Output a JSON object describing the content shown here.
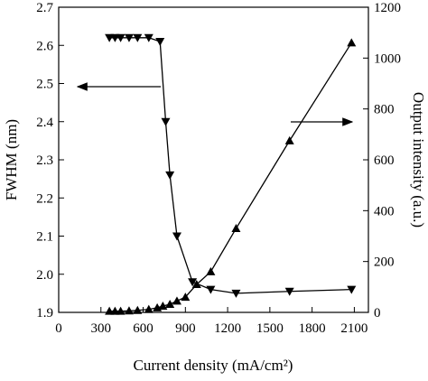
{
  "chart_data": {
    "type": "line",
    "xlabel": "Current density (mA/cm²)",
    "ylabel": "FWHM (nm)",
    "y2label": "Output intensity (a.u.)",
    "xlim": [
      0,
      2200
    ],
    "xticks": [
      0,
      300,
      600,
      900,
      1200,
      1500,
      1800,
      2100
    ],
    "ylim": [
      1.9,
      2.7
    ],
    "yticks": [
      1.9,
      {
        "value": 2,
        "label": "2.0"
      },
      2.1,
      2.2,
      2.3,
      2.4,
      2.5,
      2.6,
      2.7
    ],
    "y2lim": [
      0,
      1200
    ],
    "y2ticks": [
      0,
      200,
      400,
      600,
      800,
      1000,
      1200
    ],
    "series": [
      {
        "name": "FWHM",
        "color": "#000000",
        "marker": "triangle-down",
        "x": [
          360,
          400,
          440,
          500,
          560,
          640,
          720,
          760,
          790,
          840,
          950,
          1080,
          1260,
          1640,
          2080
        ],
        "values": [
          2.62,
          2.62,
          2.62,
          2.62,
          2.62,
          2.62,
          2.61,
          2.4,
          2.26,
          2.1,
          1.98,
          1.96,
          1.95,
          1.955,
          1.96
        ]
      },
      {
        "name": "Output intensity",
        "color": "#000000",
        "marker": "triangle-up",
        "axis": "y2",
        "x": [
          360,
          400,
          440,
          500,
          560,
          640,
          700,
          740,
          790,
          840,
          900,
          980,
          1080,
          1260,
          1640,
          2080
        ],
        "values": [
          5,
          5,
          5,
          6,
          8,
          12,
          18,
          25,
          32,
          45,
          60,
          110,
          160,
          330,
          675,
          1060
        ]
      }
    ]
  }
}
